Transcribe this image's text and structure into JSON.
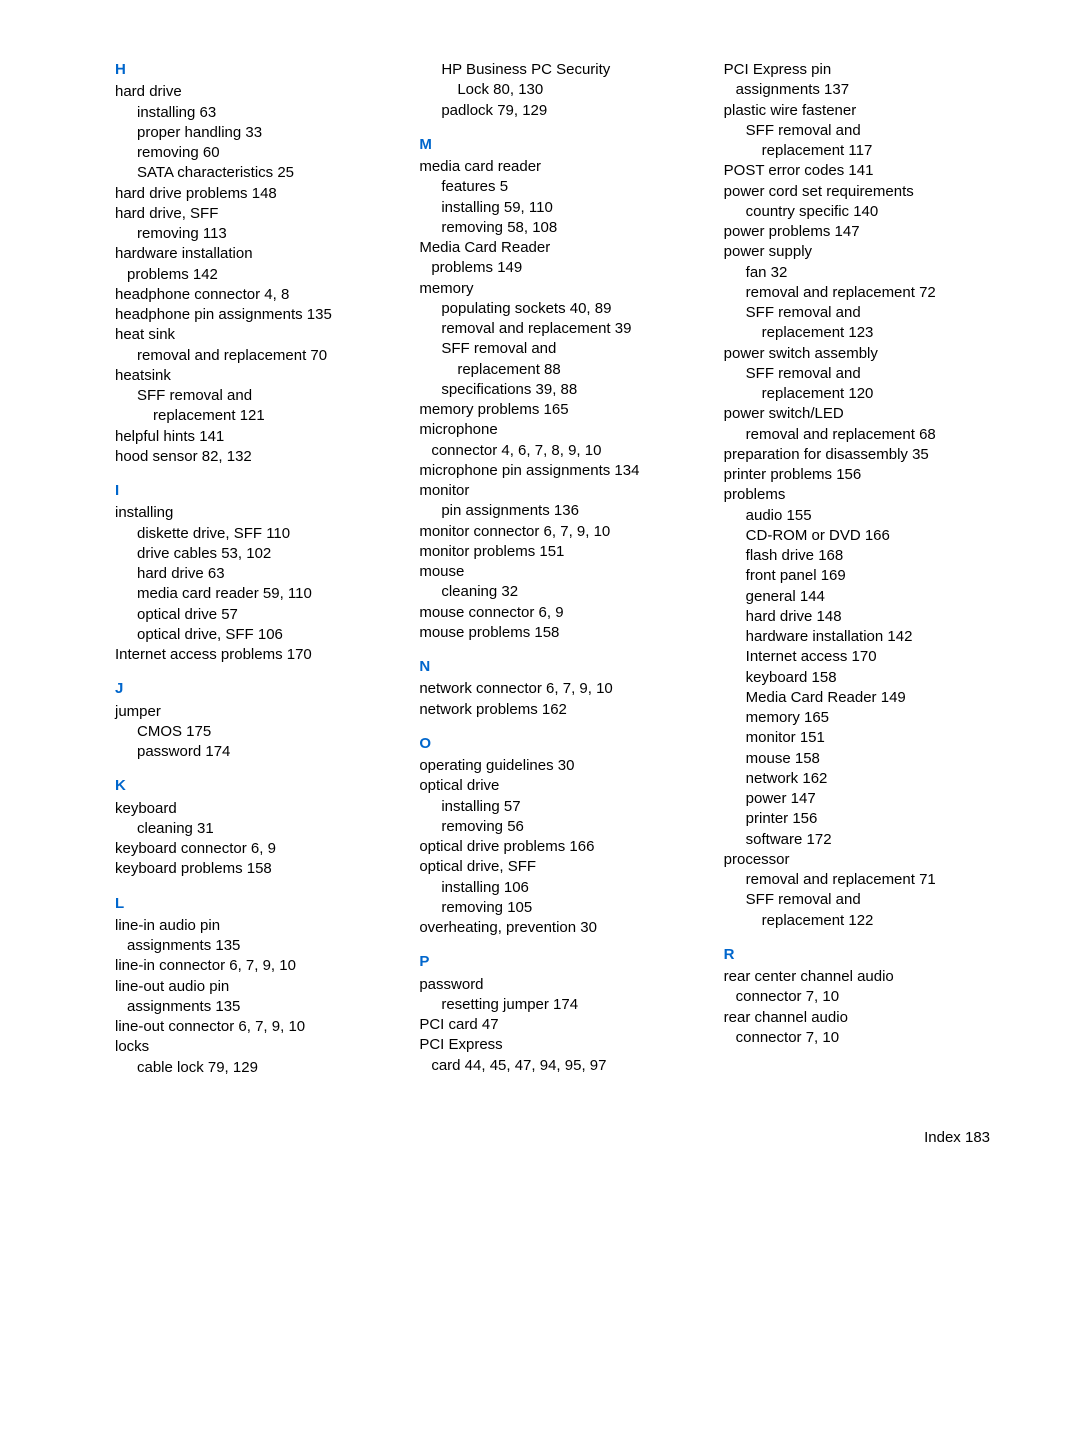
{
  "col1": {
    "H": {
      "head": "H",
      "items": [
        {
          "t": "hard drive"
        },
        {
          "t": "installing   63",
          "c": "sub1"
        },
        {
          "t": "proper handling   33",
          "c": "sub1"
        },
        {
          "t": "removing   60",
          "c": "sub1"
        },
        {
          "t": "SATA characteristics   25",
          "c": "sub1"
        },
        {
          "t": "hard drive problems   148"
        },
        {
          "t": "hard drive, SFF"
        },
        {
          "t": "removing   113",
          "c": "sub1"
        },
        {
          "t": "hardware installation"
        },
        {
          "t": "problems   142",
          "c": "sub1",
          "pl": 12
        },
        {
          "t": "headphone connector   4, 8"
        },
        {
          "t": "headphone pin assignments   135"
        },
        {
          "t": "heat sink"
        },
        {
          "t": "removal and replacement   70",
          "c": "sub1"
        },
        {
          "t": "heatsink"
        },
        {
          "t": "SFF removal and",
          "c": "sub1"
        },
        {
          "t": "replacement   121",
          "c": "sub2"
        },
        {
          "t": "helpful hints   141"
        },
        {
          "t": "hood sensor   82, 132"
        }
      ]
    },
    "I": {
      "head": "I",
      "items": [
        {
          "t": "installing"
        },
        {
          "t": "diskette drive, SFF   110",
          "c": "sub1"
        },
        {
          "t": "drive cables   53, 102",
          "c": "sub1"
        },
        {
          "t": "hard drive   63",
          "c": "sub1"
        },
        {
          "t": "media card reader   59, 110",
          "c": "sub1"
        },
        {
          "t": "optical drive   57",
          "c": "sub1"
        },
        {
          "t": "optical drive, SFF   106",
          "c": "sub1"
        },
        {
          "t": "Internet access problems   170"
        }
      ]
    },
    "J": {
      "head": "J",
      "items": [
        {
          "t": "jumper"
        },
        {
          "t": "CMOS   175",
          "c": "sub1"
        },
        {
          "t": "password   174",
          "c": "sub1"
        }
      ]
    },
    "K": {
      "head": "K",
      "items": [
        {
          "t": "keyboard"
        },
        {
          "t": "cleaning   31",
          "c": "sub1"
        },
        {
          "t": "keyboard connector   6, 9"
        },
        {
          "t": "keyboard problems   158"
        }
      ]
    },
    "L": {
      "head": "L",
      "items": [
        {
          "t": "line-in audio pin"
        },
        {
          "t": "assignments   135",
          "c": "sub1",
          "pl": 12
        },
        {
          "t": "line-in connector   6, 7, 9, 10"
        },
        {
          "t": "line-out audio pin"
        },
        {
          "t": "assignments   135",
          "c": "sub1",
          "pl": 12
        },
        {
          "t": "line-out connector   6, 7, 9, 10"
        },
        {
          "t": "locks"
        },
        {
          "t": "cable lock   79, 129",
          "c": "sub1"
        }
      ]
    }
  },
  "col2": {
    "cont": {
      "items": [
        {
          "t": "HP Business PC Security",
          "c": "sub1"
        },
        {
          "t": "Lock   80, 130",
          "c": "sub2"
        },
        {
          "t": "padlock   79, 129",
          "c": "sub1"
        }
      ]
    },
    "M": {
      "head": "M",
      "items": [
        {
          "t": "media card reader"
        },
        {
          "t": "features   5",
          "c": "sub1"
        },
        {
          "t": "installing   59, 110",
          "c": "sub1"
        },
        {
          "t": "removing   58, 108",
          "c": "sub1"
        },
        {
          "t": "Media Card Reader"
        },
        {
          "t": "problems   149",
          "c": "sub1",
          "pl": 12
        },
        {
          "t": "memory"
        },
        {
          "t": "populating sockets   40, 89",
          "c": "sub1"
        },
        {
          "t": "removal and replacement   39",
          "c": "sub1"
        },
        {
          "t": "SFF removal and",
          "c": "sub1"
        },
        {
          "t": "replacement   88",
          "c": "sub2"
        },
        {
          "t": "specifications   39, 88",
          "c": "sub1"
        },
        {
          "t": "memory problems   165"
        },
        {
          "t": "microphone"
        },
        {
          "t": "connector   4, 6, 7, 8, 9, 10",
          "c": "sub1",
          "pl": 12
        },
        {
          "t": "microphone pin assignments   134"
        },
        {
          "t": "monitor"
        },
        {
          "t": "pin assignments   136",
          "c": "sub1"
        },
        {
          "t": "monitor connector   6, 7, 9, 10"
        },
        {
          "t": "monitor problems   151"
        },
        {
          "t": "mouse"
        },
        {
          "t": "cleaning   32",
          "c": "sub1"
        },
        {
          "t": "mouse connector   6, 9"
        },
        {
          "t": "mouse problems   158"
        }
      ]
    },
    "N": {
      "head": "N",
      "items": [
        {
          "t": "network connector   6, 7, 9, 10"
        },
        {
          "t": "network problems   162"
        }
      ]
    },
    "O": {
      "head": "O",
      "items": [
        {
          "t": "operating guidelines   30"
        },
        {
          "t": "optical drive"
        },
        {
          "t": "installing   57",
          "c": "sub1"
        },
        {
          "t": "removing   56",
          "c": "sub1"
        },
        {
          "t": "optical drive problems   166"
        },
        {
          "t": "optical drive, SFF"
        },
        {
          "t": "installing   106",
          "c": "sub1"
        },
        {
          "t": "removing   105",
          "c": "sub1"
        },
        {
          "t": "overheating, prevention   30"
        }
      ]
    },
    "P": {
      "head": "P",
      "items": [
        {
          "t": "password"
        },
        {
          "t": "resetting jumper   174",
          "c": "sub1"
        },
        {
          "t": "PCI card   47"
        },
        {
          "t": "PCI Express"
        },
        {
          "t": "card   44, 45, 47, 94, 95, 97",
          "c": "sub1",
          "pl": 12
        }
      ]
    }
  },
  "col3": {
    "cont": {
      "items": [
        {
          "t": "PCI Express pin"
        },
        {
          "t": "assignments   137",
          "c": "sub1",
          "pl": 12
        },
        {
          "t": "plastic wire fastener"
        },
        {
          "t": "SFF removal and",
          "c": "sub1"
        },
        {
          "t": "replacement   117",
          "c": "sub2"
        },
        {
          "t": "POST error codes   141"
        },
        {
          "t": "power cord set requirements"
        },
        {
          "t": "country specific   140",
          "c": "sub1"
        },
        {
          "t": "power problems   147"
        },
        {
          "t": "power supply"
        },
        {
          "t": "fan   32",
          "c": "sub1"
        },
        {
          "t": "removal and replacement   72",
          "c": "sub1"
        },
        {
          "t": "SFF removal and",
          "c": "sub1"
        },
        {
          "t": "replacement   123",
          "c": "sub2"
        },
        {
          "t": "power switch assembly"
        },
        {
          "t": "SFF removal and",
          "c": "sub1"
        },
        {
          "t": "replacement   120",
          "c": "sub2"
        },
        {
          "t": "power switch/LED"
        },
        {
          "t": "removal and replacement   68",
          "c": "sub1"
        },
        {
          "t": "preparation for disassembly   35"
        },
        {
          "t": "printer problems   156"
        },
        {
          "t": "problems"
        },
        {
          "t": "audio   155",
          "c": "sub1"
        },
        {
          "t": "CD-ROM or DVD   166",
          "c": "sub1"
        },
        {
          "t": "flash drive   168",
          "c": "sub1"
        },
        {
          "t": "front panel   169",
          "c": "sub1"
        },
        {
          "t": "general   144",
          "c": "sub1"
        },
        {
          "t": "hard drive   148",
          "c": "sub1"
        },
        {
          "t": "hardware installation   142",
          "c": "sub1"
        },
        {
          "t": "Internet access   170",
          "c": "sub1"
        },
        {
          "t": "keyboard   158",
          "c": "sub1"
        },
        {
          "t": "Media Card Reader   149",
          "c": "sub1"
        },
        {
          "t": "memory   165",
          "c": "sub1"
        },
        {
          "t": "monitor   151",
          "c": "sub1"
        },
        {
          "t": "mouse   158",
          "c": "sub1"
        },
        {
          "t": "network   162",
          "c": "sub1"
        },
        {
          "t": "power   147",
          "c": "sub1"
        },
        {
          "t": "printer   156",
          "c": "sub1"
        },
        {
          "t": "software   172",
          "c": "sub1"
        },
        {
          "t": "processor"
        },
        {
          "t": "removal and replacement   71",
          "c": "sub1"
        },
        {
          "t": "SFF removal and",
          "c": "sub1"
        },
        {
          "t": "replacement   122",
          "c": "sub2"
        }
      ]
    },
    "R": {
      "head": "R",
      "items": [
        {
          "t": "rear center channel audio"
        },
        {
          "t": "connector   7, 10",
          "c": "sub1",
          "pl": 12
        },
        {
          "t": "rear channel audio"
        },
        {
          "t": "connector   7, 10",
          "c": "sub1",
          "pl": 12
        }
      ]
    }
  },
  "footer": "Index  183"
}
